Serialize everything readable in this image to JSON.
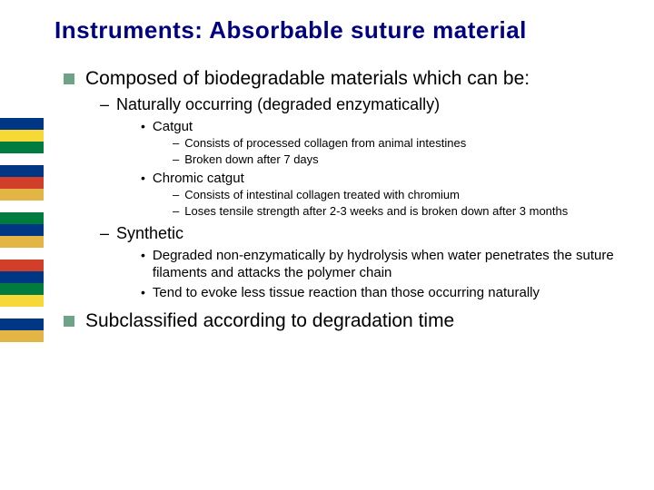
{
  "title": "Instruments: Absorbable suture material",
  "stripes": [
    "#003785",
    "#f6d837",
    "#007d3e",
    "#ffffff",
    "#003785",
    "#d13f2b",
    "#e3b545",
    "#ffffff",
    "#007d3e",
    "#003785",
    "#e3b545",
    "#ffffff",
    "#d13f2b",
    "#003785",
    "#007d3e",
    "#f6d837",
    "#ffffff",
    "#003785",
    "#e3b545"
  ],
  "points": {
    "p1": "Composed of biodegradable materials which can be:",
    "p1a": "Naturally occurring (degraded enzymatically)",
    "p1a1": "Catgut",
    "p1a1a": "Consists of processed collagen from animal intestines",
    "p1a1b": "Broken down after 7 days",
    "p1a2": "Chromic catgut",
    "p1a2a": "Consists of intestinal collagen treated with chromium",
    "p1a2b": "Loses tensile strength after 2-3 weeks and is broken down after 3 months",
    "p1b": "Synthetic",
    "p1b1": "Degraded non-enzymatically by hydrolysis when water penetrates the suture filaments and attacks the polymer chain",
    "p1b2": "Tend to evoke less tissue reaction than those occurring naturally",
    "p2": "Subclassified according to degradation time"
  }
}
